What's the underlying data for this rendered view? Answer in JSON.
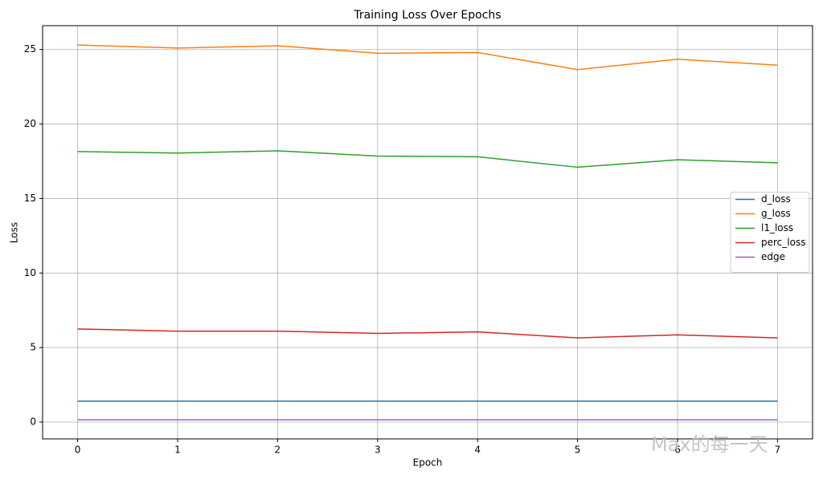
{
  "chart_data": {
    "type": "line",
    "title": "Training Loss Over Epochs",
    "x_label": "Epoch",
    "y_label": "Loss",
    "x": [
      0,
      1,
      2,
      3,
      4,
      5,
      6,
      7
    ],
    "series": [
      {
        "name": "d_loss",
        "color": "#1f77b4",
        "values": [
          1.4,
          1.4,
          1.4,
          1.4,
          1.4,
          1.4,
          1.4,
          1.4
        ]
      },
      {
        "name": "g_loss",
        "color": "#ff7f0e",
        "values": [
          25.3,
          25.1,
          25.25,
          24.75,
          24.8,
          23.65,
          24.35,
          23.95
        ]
      },
      {
        "name": "l1_loss",
        "color": "#2ca02c",
        "values": [
          18.15,
          18.05,
          18.2,
          17.85,
          17.8,
          17.1,
          17.6,
          17.4
        ]
      },
      {
        "name": "perc_loss",
        "color": "#d62728",
        "values": [
          6.25,
          6.1,
          6.1,
          5.95,
          6.05,
          5.65,
          5.85,
          5.65
        ]
      },
      {
        "name": "edge",
        "color": "#9467bd",
        "values": [
          0.15,
          0.15,
          0.15,
          0.15,
          0.15,
          0.15,
          0.15,
          0.15
        ]
      }
    ],
    "xlim": [
      -0.35,
      7.35
    ],
    "xticks": [
      0,
      1,
      2,
      3,
      4,
      5,
      6,
      7
    ],
    "ylim": [
      -1.13,
      26.6
    ],
    "yticks": [
      0,
      5,
      10,
      15,
      20,
      25
    ],
    "grid": true,
    "legend": "right",
    "watermark": "Max的每一天"
  }
}
